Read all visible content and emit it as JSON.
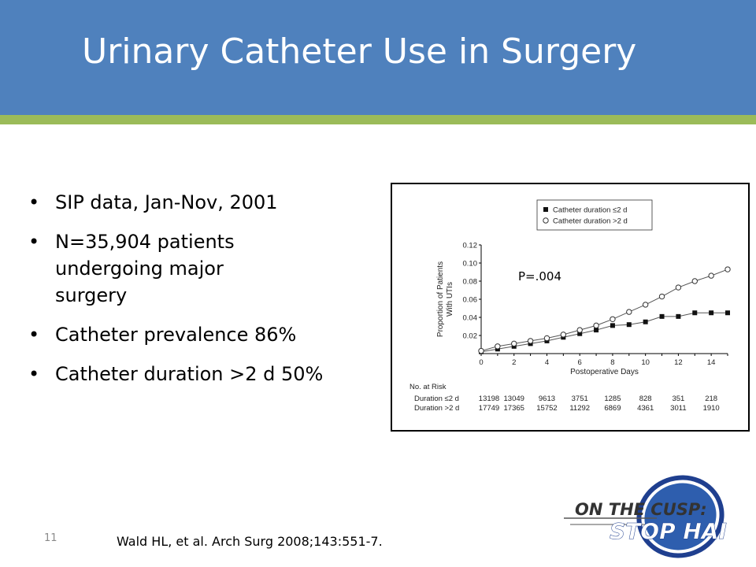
{
  "slide": {
    "title": "Urinary Catheter Use in Surgery",
    "bullets": [
      "SIP data, Jan-Nov, 2001",
      "N=35,904 patients undergoing major surgery",
      "Catheter prevalence 86%",
      "Catheter duration >2 d 50%"
    ],
    "page_number": "11",
    "citation": "Wald HL, et al. Arch Surg 2008;143:551-7.",
    "logo": {
      "line1": "ON THE CUSP:",
      "line2": "STOP HAI"
    },
    "colors": {
      "header": "#4f81bd",
      "header_rule": "#9bbb59"
    }
  },
  "chart_data": {
    "type": "line",
    "xlabel": "Postoperative Days",
    "ylabel": "Proportion of Patients With UTIs",
    "xlim": [
      0,
      15
    ],
    "ylim": [
      0,
      0.12
    ],
    "xticks": [
      "0",
      "2",
      "4",
      "6",
      "8",
      "10",
      "12",
      "14"
    ],
    "yticks": [
      "0.02",
      "0.04",
      "0.06",
      "0.08",
      "0.10",
      "0.12"
    ],
    "annotation": "P=.004",
    "legend_position": "top-right",
    "x": [
      0,
      1,
      2,
      3,
      4,
      5,
      6,
      7,
      8,
      9,
      10,
      11,
      12,
      13,
      14,
      15
    ],
    "series": [
      {
        "name": "Catheter duration ≤2 d",
        "marker": "filled-square",
        "values": [
          0.002,
          0.005,
          0.008,
          0.011,
          0.014,
          0.018,
          0.022,
          0.026,
          0.031,
          0.032,
          0.035,
          0.041,
          0.041,
          0.045,
          0.045,
          0.045
        ]
      },
      {
        "name": "Catheter duration >2 d",
        "marker": "open-circle",
        "values": [
          0.003,
          0.008,
          0.011,
          0.014,
          0.017,
          0.021,
          0.026,
          0.031,
          0.038,
          0.046,
          0.054,
          0.063,
          0.073,
          0.08,
          0.086,
          0.093
        ]
      }
    ],
    "risk_table": {
      "heading": "No. at Risk",
      "rows": [
        {
          "label": "Duration ≤2 d",
          "values": [
            "13198",
            "13049",
            "9613",
            "3751",
            "1285",
            "828",
            "351",
            "218"
          ]
        },
        {
          "label": "Duration >2 d",
          "values": [
            "17749",
            "17365",
            "15752",
            "11292",
            "6869",
            "4361",
            "3011",
            "1910"
          ]
        }
      ]
    }
  }
}
